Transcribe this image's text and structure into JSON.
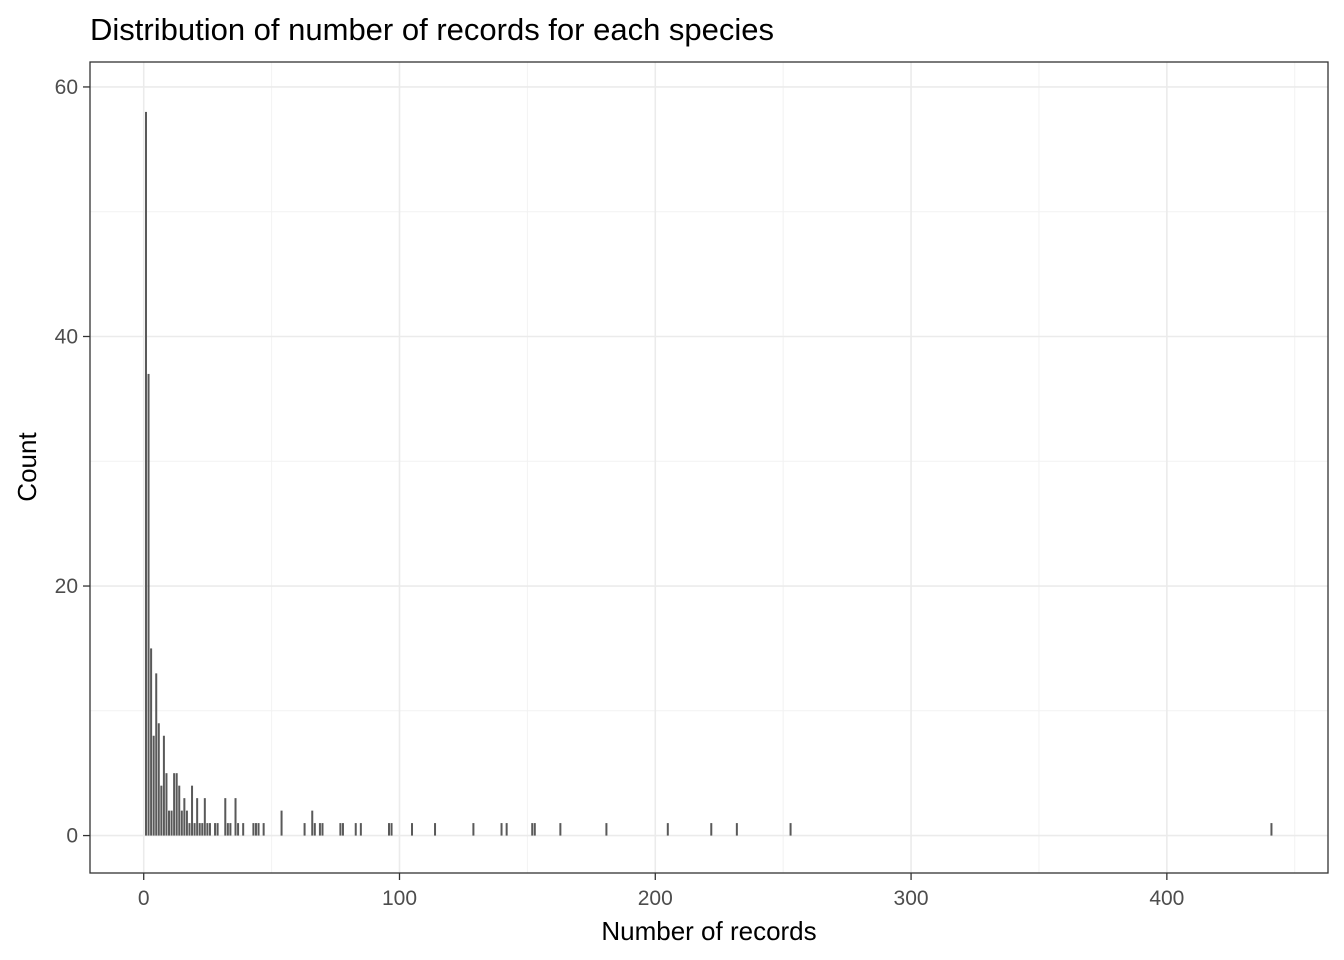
{
  "chart_data": {
    "type": "bar",
    "title": "Distribution of number of records for each species",
    "xlabel": "Number of records",
    "ylabel": "Count",
    "xlim": [
      -21,
      463
    ],
    "ylim": [
      -3,
      62
    ],
    "x_ticks": [
      0,
      100,
      200,
      300,
      400
    ],
    "x_tick_labels": [
      "0",
      "100",
      "200",
      "300",
      "400"
    ],
    "y_ticks": [
      0,
      20,
      40,
      60
    ],
    "y_tick_labels": [
      "0",
      "20",
      "40",
      "60"
    ],
    "grid": true,
    "bar_color": "#595959",
    "points": [
      {
        "x": 1,
        "y": 58
      },
      {
        "x": 2,
        "y": 37
      },
      {
        "x": 3,
        "y": 15
      },
      {
        "x": 4,
        "y": 8
      },
      {
        "x": 5,
        "y": 13
      },
      {
        "x": 6,
        "y": 9
      },
      {
        "x": 7,
        "y": 4
      },
      {
        "x": 8,
        "y": 8
      },
      {
        "x": 9,
        "y": 5
      },
      {
        "x": 10,
        "y": 2
      },
      {
        "x": 11,
        "y": 2
      },
      {
        "x": 12,
        "y": 5
      },
      {
        "x": 13,
        "y": 5
      },
      {
        "x": 14,
        "y": 4
      },
      {
        "x": 15,
        "y": 2
      },
      {
        "x": 16,
        "y": 3
      },
      {
        "x": 17,
        "y": 2
      },
      {
        "x": 18,
        "y": 1
      },
      {
        "x": 19,
        "y": 4
      },
      {
        "x": 20,
        "y": 1
      },
      {
        "x": 21,
        "y": 3
      },
      {
        "x": 22,
        "y": 1
      },
      {
        "x": 23,
        "y": 1
      },
      {
        "x": 24,
        "y": 3
      },
      {
        "x": 25,
        "y": 1
      },
      {
        "x": 26,
        "y": 1
      },
      {
        "x": 28,
        "y": 1
      },
      {
        "x": 29,
        "y": 1
      },
      {
        "x": 32,
        "y": 3
      },
      {
        "x": 33,
        "y": 1
      },
      {
        "x": 34,
        "y": 1
      },
      {
        "x": 36,
        "y": 3
      },
      {
        "x": 37,
        "y": 1
      },
      {
        "x": 39,
        "y": 1
      },
      {
        "x": 43,
        "y": 1
      },
      {
        "x": 44,
        "y": 1
      },
      {
        "x": 45,
        "y": 1
      },
      {
        "x": 47,
        "y": 1
      },
      {
        "x": 54,
        "y": 2
      },
      {
        "x": 63,
        "y": 1
      },
      {
        "x": 66,
        "y": 2
      },
      {
        "x": 67,
        "y": 1
      },
      {
        "x": 69,
        "y": 1
      },
      {
        "x": 70,
        "y": 1
      },
      {
        "x": 77,
        "y": 1
      },
      {
        "x": 78,
        "y": 1
      },
      {
        "x": 83,
        "y": 1
      },
      {
        "x": 85,
        "y": 1
      },
      {
        "x": 96,
        "y": 1
      },
      {
        "x": 97,
        "y": 1
      },
      {
        "x": 105,
        "y": 1
      },
      {
        "x": 114,
        "y": 1
      },
      {
        "x": 129,
        "y": 1
      },
      {
        "x": 140,
        "y": 1
      },
      {
        "x": 142,
        "y": 1
      },
      {
        "x": 152,
        "y": 1
      },
      {
        "x": 153,
        "y": 1
      },
      {
        "x": 163,
        "y": 1
      },
      {
        "x": 181,
        "y": 1
      },
      {
        "x": 205,
        "y": 1
      },
      {
        "x": 222,
        "y": 1
      },
      {
        "x": 232,
        "y": 1
      },
      {
        "x": 253,
        "y": 1
      },
      {
        "x": 441,
        "y": 1
      }
    ]
  }
}
